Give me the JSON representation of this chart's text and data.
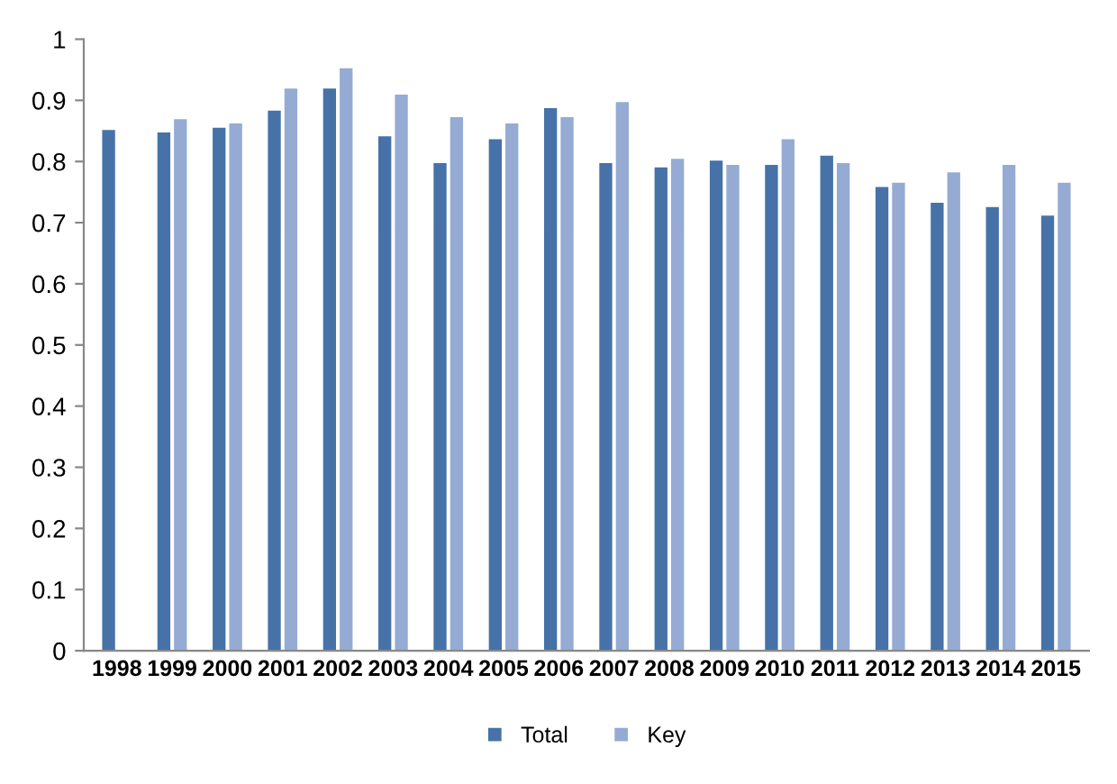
{
  "chart_data": {
    "type": "bar",
    "categories": [
      "1998",
      "1999",
      "2000",
      "2001",
      "2002",
      "2003",
      "2004",
      "2005",
      "2006",
      "2007",
      "2008",
      "2009",
      "2010",
      "2011",
      "2012",
      "2013",
      "2014",
      "2015"
    ],
    "series": [
      {
        "name": "Total",
        "color": "#4672a8",
        "values": [
          0.853,
          0.849,
          0.857,
          0.885,
          0.921,
          0.843,
          0.799,
          0.838,
          0.889,
          0.799,
          0.792,
          0.803,
          0.796,
          0.811,
          0.76,
          0.734,
          0.727,
          0.713
        ]
      },
      {
        "name": "Key",
        "color": "#95abd4",
        "values": [
          null,
          0.871,
          0.864,
          0.921,
          0.954,
          0.911,
          0.874,
          0.864,
          0.874,
          0.899,
          0.806,
          0.796,
          0.838,
          0.799,
          0.767,
          0.784,
          0.796,
          0.767
        ]
      }
    ],
    "ylim": [
      0,
      1
    ],
    "yticks": [
      0,
      0.1,
      0.2,
      0.3,
      0.4,
      0.5,
      0.6,
      0.7,
      0.8,
      0.9,
      1
    ],
    "grid": false,
    "legend": "bottom"
  }
}
